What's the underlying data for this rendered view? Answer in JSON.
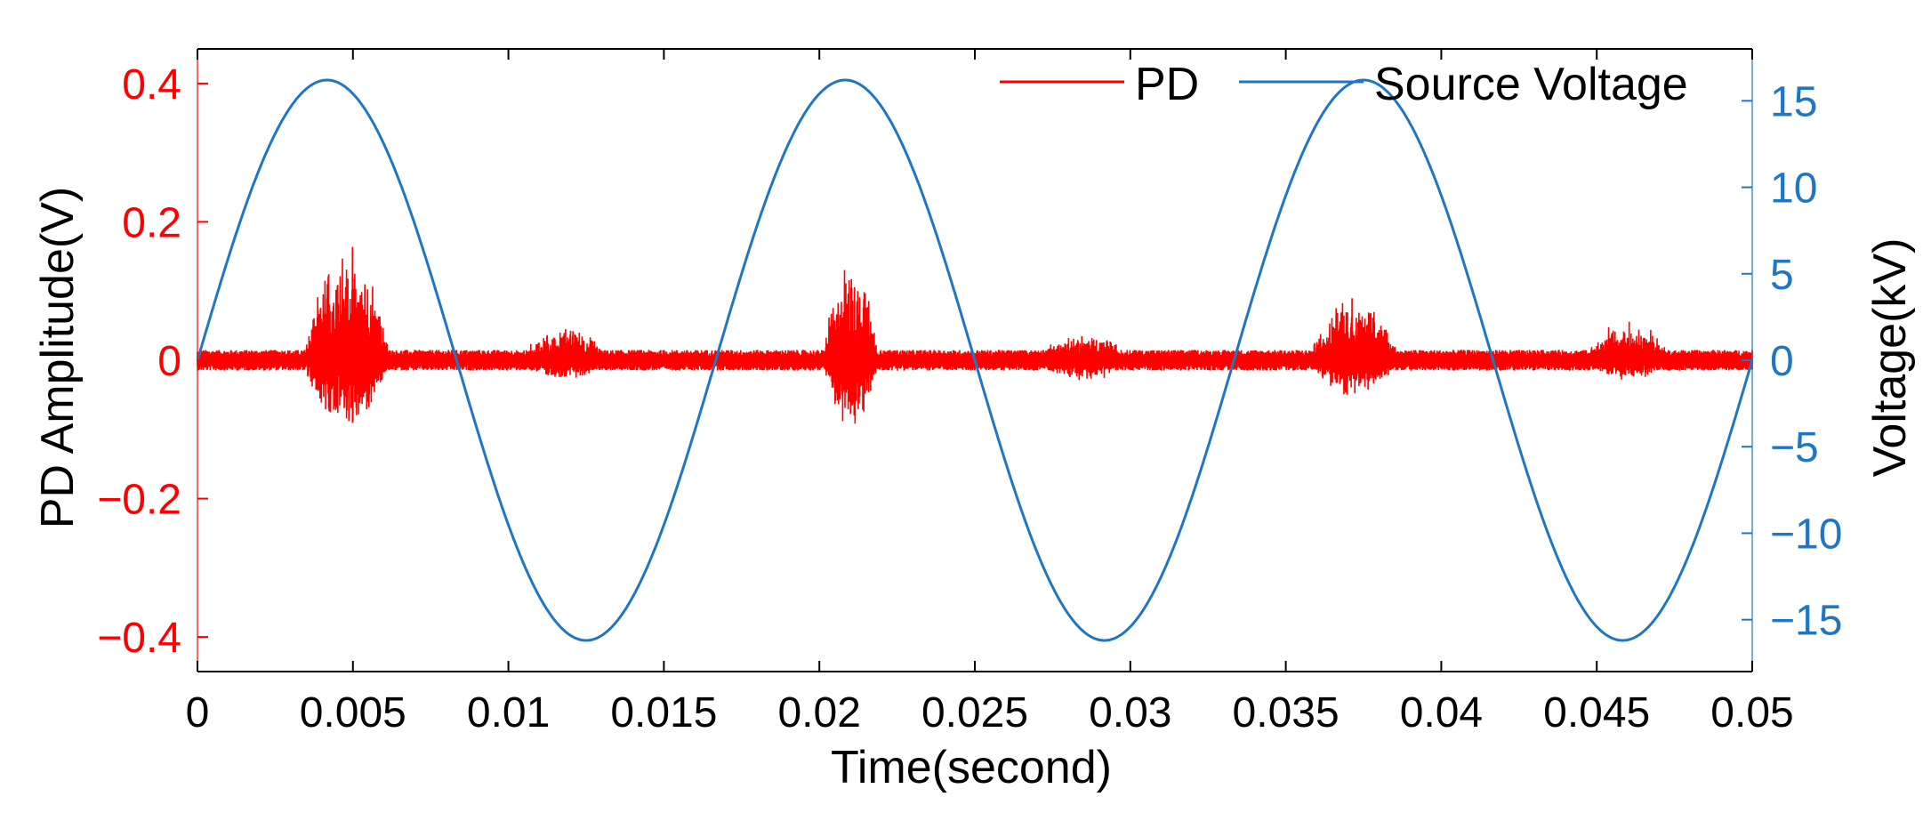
{
  "colors": {
    "pd": "#ff0000",
    "voltage": "#1f77c4",
    "axis": "#000000"
  },
  "chart_data": {
    "type": "line",
    "xlabel": "Time(second)",
    "ylabel_left": "PD Amplitude(V)",
    "ylabel_right": "Voltage(kV)",
    "xlim": [
      0,
      0.05
    ],
    "ylim_left": [
      -0.45,
      0.45
    ],
    "ylim_right": [
      -18,
      18
    ],
    "x_ticks": [
      "0",
      "0.005",
      "0.01",
      "0.015",
      "0.02",
      "0.025",
      "0.03",
      "0.035",
      "0.04",
      "0.045",
      "0.05"
    ],
    "x_tick_values": [
      0,
      0.005,
      0.01,
      0.015,
      0.02,
      0.025,
      0.03,
      0.035,
      0.04,
      0.045,
      0.05
    ],
    "y_left_ticks": [
      "0.4",
      "0.2",
      "0",
      "-0.2",
      "-0.4"
    ],
    "y_left_tick_values": [
      0.4,
      0.2,
      0,
      -0.2,
      -0.4
    ],
    "y_right_ticks": [
      "15",
      "10",
      "5",
      "0",
      "-5",
      "-10",
      "-15"
    ],
    "y_right_tick_values": [
      15,
      10,
      5,
      0,
      -5,
      -10,
      -15
    ],
    "grid": false,
    "legend": {
      "placement": "top-right",
      "entries": [
        "PD",
        "Source Voltage"
      ]
    },
    "series": [
      {
        "name": "PD",
        "axis": "left",
        "kind": "noise_envelope",
        "baseline_amplitude": 0.015,
        "bursts": [
          {
            "center": 0.0048,
            "width": 0.0024,
            "max": 0.17,
            "min": -0.11
          },
          {
            "center": 0.0118,
            "width": 0.0025,
            "max": 0.05,
            "min": -0.03
          },
          {
            "center": 0.021,
            "width": 0.0015,
            "max": 0.16,
            "min": -0.11
          },
          {
            "center": 0.0285,
            "width": 0.003,
            "max": 0.04,
            "min": -0.03
          },
          {
            "center": 0.0372,
            "width": 0.0025,
            "max": 0.1,
            "min": -0.06
          },
          {
            "center": 0.046,
            "width": 0.0025,
            "max": 0.06,
            "min": -0.03
          }
        ]
      },
      {
        "name": "Source Voltage",
        "axis": "right",
        "kind": "sine",
        "amplitude_kv": 16.2,
        "frequency_hz": 60,
        "zero_crossings": [
          0,
          0.0083,
          0.0167,
          0.025,
          0.0333,
          0.0417,
          0.05
        ],
        "peaks": [
          {
            "x": 0.0042,
            "y": 16.2
          },
          {
            "x": 0.0125,
            "y": -16.2
          },
          {
            "x": 0.0208,
            "y": 16.2
          },
          {
            "x": 0.0292,
            "y": -16.2
          },
          {
            "x": 0.0375,
            "y": 16.2
          },
          {
            "x": 0.0458,
            "y": -16.2
          }
        ]
      }
    ]
  }
}
